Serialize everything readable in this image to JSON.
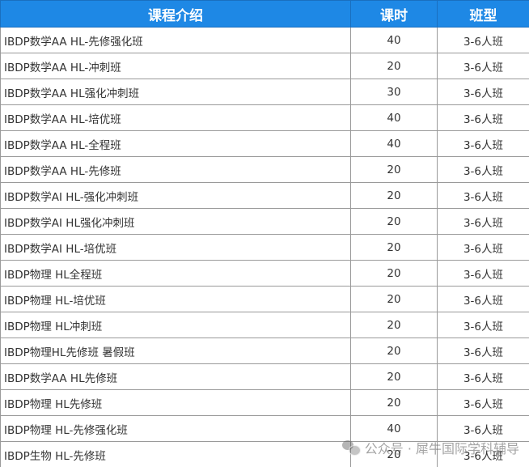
{
  "headers": {
    "course": "课程介绍",
    "hours": "课时",
    "class_size": "班型"
  },
  "rows": [
    {
      "course": "IBDP数学AA HL-先修强化班",
      "hours": "40",
      "class_size": "3-6人班"
    },
    {
      "course": "IBDP数学AA HL-冲刺班",
      "hours": "20",
      "class_size": "3-6人班"
    },
    {
      "course": "IBDP数学AA HL强化冲刺班",
      "hours": "30",
      "class_size": "3-6人班"
    },
    {
      "course": "IBDP数学AA HL-培优班",
      "hours": "40",
      "class_size": "3-6人班"
    },
    {
      "course": "IBDP数学AA HL-全程班",
      "hours": "40",
      "class_size": "3-6人班"
    },
    {
      "course": "IBDP数学AA HL-先修班",
      "hours": "20",
      "class_size": "3-6人班"
    },
    {
      "course": "IBDP数学AI HL-强化冲刺班",
      "hours": "20",
      "class_size": "3-6人班"
    },
    {
      "course": "IBDP数学AI HL强化冲刺班",
      "hours": "20",
      "class_size": "3-6人班"
    },
    {
      "course": "IBDP数学AI HL-培优班",
      "hours": "20",
      "class_size": "3-6人班"
    },
    {
      "course": "IBDP物理 HL全程班",
      "hours": "20",
      "class_size": "3-6人班"
    },
    {
      "course": "IBDP物理 HL-培优班",
      "hours": "20",
      "class_size": "3-6人班"
    },
    {
      "course": "IBDP物理 HL冲刺班",
      "hours": "20",
      "class_size": "3-6人班"
    },
    {
      "course": "IBDP物理HL先修班 暑假班",
      "hours": "20",
      "class_size": "3-6人班"
    },
    {
      "course": "IBDP数学AA HL先修班",
      "hours": "20",
      "class_size": "3-6人班"
    },
    {
      "course": "IBDP物理 HL先修班",
      "hours": "20",
      "class_size": "3-6人班"
    },
    {
      "course": "IBDP物理 HL-先修强化班",
      "hours": "40",
      "class_size": "3-6人班"
    },
    {
      "course": "IBDP生物 HL-先修班",
      "hours": "20",
      "class_size": "3-6人班"
    }
  ],
  "watermark": "公众号 · 犀牛国际学科辅导",
  "colors": {
    "header_bg": "#1e88e5",
    "header_text": "#ffffff",
    "grid": "#9a9a9a"
  }
}
